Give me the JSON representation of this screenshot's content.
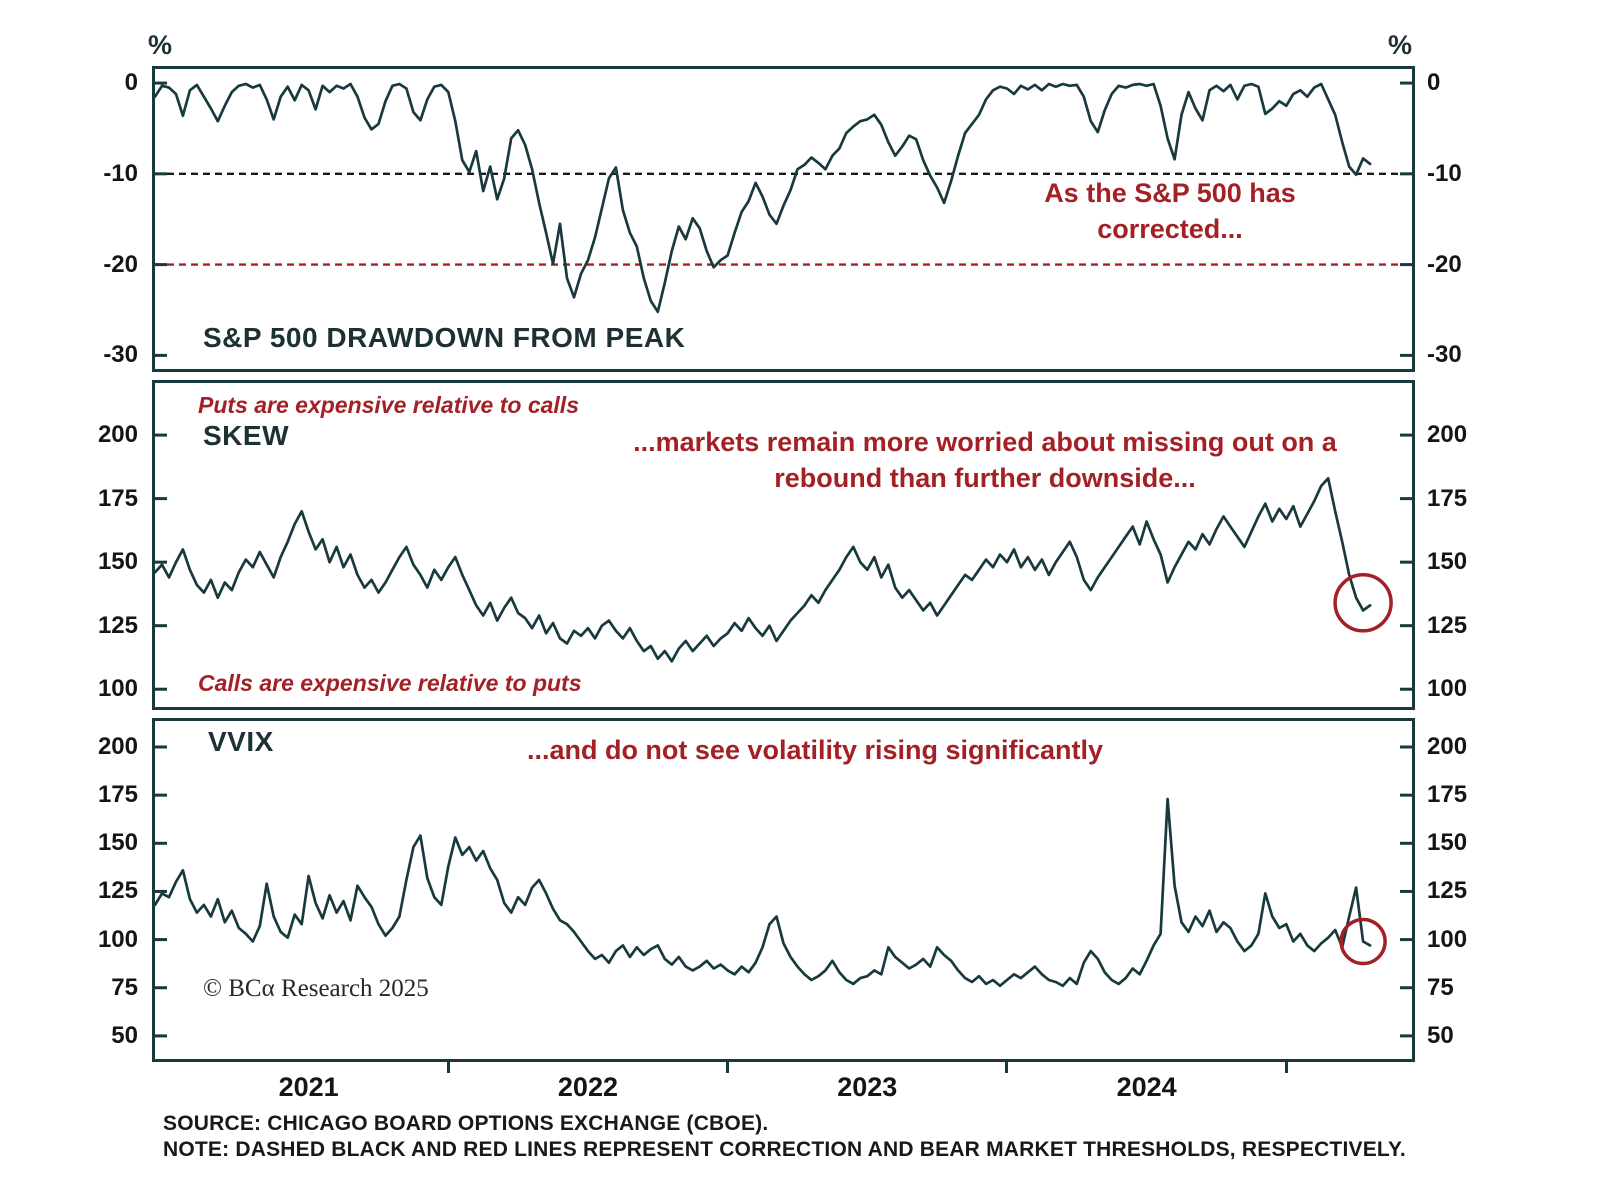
{
  "figure": {
    "bg": "#ffffff",
    "line_color": "#183a3e",
    "accent_red": "#a32126",
    "percent_symbol": "%",
    "copyright": "© BCα Research 2025",
    "footer": {
      "source": "SOURCE: CHICAGO BOARD OPTIONS EXCHANGE (CBOE).",
      "note": "NOTE: DASHED BLACK AND RED LINES REPRESENT CORRECTION AND BEAR MARKET THRESHOLDS, RESPECTIVELY."
    }
  },
  "annotations": {
    "drawdown_note": "As the S&P 500 has\ncorrected...",
    "skew_note": "...markets remain more worried about missing out on a\nrebound than further downside...",
    "vvix_note": "...and do not see volatility rising significantly",
    "puts_note": "Puts are expensive relative to calls",
    "calls_note": "Calls are expensive relative to puts"
  },
  "x_axis": {
    "year_labels": [
      {
        "label": "2021",
        "center": 2021.5
      },
      {
        "label": "2022",
        "center": 2022.5
      },
      {
        "label": "2023",
        "center": 2023.5
      },
      {
        "label": "2024",
        "center": 2024.5
      }
    ],
    "boundary_ticks": [
      2022,
      2023,
      2024,
      2025
    ]
  },
  "chart_data": [
    {
      "type": "line",
      "id": "sp500-drawdown",
      "title": "S&P 500 DRAWDOWN FROM PEAK",
      "ylabel": "%",
      "xlim": [
        2020.95,
        2025.45
      ],
      "ylim": [
        -31.5,
        1.55
      ],
      "yticks": [
        0,
        -10,
        -20,
        -30
      ],
      "thresholds": [
        {
          "name": "correction-threshold",
          "value": -10,
          "color": "#1a1a1a"
        },
        {
          "name": "bear-market-threshold",
          "value": -20,
          "color": "#a32126"
        }
      ],
      "x_start": 2020.95,
      "x_step": 0.025,
      "values": [
        -1.5,
        -0.3,
        -0.5,
        -1.2,
        -3.6,
        -0.8,
        -0.2,
        -1.5,
        -2.8,
        -4.2,
        -2.5,
        -1.0,
        -0.3,
        -0.1,
        -0.5,
        -0.2,
        -1.8,
        -4.0,
        -1.5,
        -0.4,
        -1.9,
        -0.2,
        -0.8,
        -2.9,
        -0.3,
        -1.0,
        -0.3,
        -0.6,
        -0.1,
        -1.5,
        -3.8,
        -5.1,
        -4.5,
        -2.0,
        -0.3,
        -0.1,
        -0.6,
        -3.2,
        -4.1,
        -1.8,
        -0.4,
        -0.2,
        -1.0,
        -4.2,
        -8.5,
        -9.8,
        -7.5,
        -11.9,
        -9.2,
        -12.8,
        -10.5,
        -6.1,
        -5.2,
        -6.8,
        -9.5,
        -13.2,
        -16.5,
        -19.9,
        -15.5,
        -21.5,
        -23.6,
        -21.0,
        -19.5,
        -17.0,
        -13.8,
        -10.5,
        -9.3,
        -14.0,
        -16.5,
        -18.0,
        -21.5,
        -24.0,
        -25.2,
        -22.0,
        -18.5,
        -15.8,
        -17.2,
        -14.9,
        -16.0,
        -18.5,
        -20.3,
        -19.5,
        -19.0,
        -16.5,
        -14.2,
        -13.0,
        -11.0,
        -12.5,
        -14.5,
        -15.5,
        -13.5,
        -11.8,
        -9.5,
        -9.0,
        -8.2,
        -8.8,
        -9.5,
        -8.0,
        -7.2,
        -5.5,
        -4.8,
        -4.2,
        -4.0,
        -3.5,
        -4.6,
        -6.5,
        -8.0,
        -7.0,
        -5.8,
        -6.2,
        -8.5,
        -10.2,
        -11.5,
        -13.2,
        -10.8,
        -8.0,
        -5.5,
        -4.5,
        -3.5,
        -1.8,
        -0.8,
        -0.4,
        -0.6,
        -1.2,
        -0.3,
        -0.7,
        -0.2,
        -0.8,
        -0.1,
        -0.4,
        -0.1,
        -0.3,
        -0.2,
        -1.5,
        -4.2,
        -5.4,
        -3.0,
        -1.2,
        -0.3,
        -0.5,
        -0.2,
        -0.1,
        -0.3,
        -0.1,
        -2.5,
        -6.1,
        -8.4,
        -3.5,
        -1.0,
        -2.8,
        -4.1,
        -0.8,
        -0.3,
        -0.9,
        -0.2,
        -1.8,
        -0.3,
        -0.1,
        -0.4,
        -3.4,
        -2.8,
        -2.0,
        -2.5,
        -1.2,
        -0.8,
        -1.5,
        -0.5,
        -0.1,
        -1.8,
        -3.5,
        -6.5,
        -9.2,
        -10.1,
        -8.3,
        -8.9
      ]
    },
    {
      "type": "line",
      "id": "skew",
      "title": "SKEW",
      "xlim": [
        2020.95,
        2025.45
      ],
      "ylim": [
        93,
        220.5
      ],
      "yticks": [
        200,
        175,
        150,
        125,
        100
      ],
      "highlight": {
        "x": 2025.275,
        "y": 134,
        "r": 28
      },
      "x_start": 2020.95,
      "x_step": 0.025,
      "values": [
        146,
        149,
        144,
        150,
        155,
        147,
        141,
        138,
        143,
        136,
        142,
        139,
        146,
        151,
        148,
        154,
        149,
        144,
        152,
        158,
        165,
        170,
        162,
        155,
        159,
        150,
        156,
        148,
        153,
        145,
        140,
        143,
        138,
        142,
        147,
        152,
        156,
        149,
        145,
        140,
        147,
        143,
        148,
        152,
        145,
        139,
        133,
        129,
        134,
        127,
        132,
        136,
        130,
        128,
        124,
        129,
        122,
        126,
        120,
        118,
        123,
        121,
        124,
        120,
        125,
        127,
        123,
        120,
        124,
        119,
        115,
        117,
        112,
        115,
        111,
        116,
        119,
        115,
        118,
        121,
        117,
        120,
        122,
        126,
        123,
        128,
        124,
        121,
        125,
        119,
        123,
        127,
        130,
        133,
        137,
        134,
        139,
        143,
        147,
        152,
        156,
        150,
        147,
        152,
        144,
        149,
        140,
        136,
        139,
        135,
        131,
        134,
        129,
        133,
        137,
        141,
        145,
        143,
        147,
        151,
        148,
        153,
        150,
        155,
        148,
        152,
        147,
        151,
        145,
        150,
        154,
        158,
        152,
        143,
        139,
        144,
        148,
        152,
        156,
        160,
        164,
        157,
        166,
        159,
        153,
        142,
        148,
        153,
        158,
        155,
        161,
        157,
        163,
        168,
        164,
        160,
        156,
        162,
        168,
        173,
        166,
        171,
        167,
        172,
        164,
        169,
        174,
        180,
        183,
        170,
        158,
        145,
        136,
        131,
        133
      ]
    },
    {
      "type": "line",
      "id": "vvix",
      "title": "VVIX",
      "xlim": [
        2020.95,
        2025.45
      ],
      "ylim": [
        38,
        213.5
      ],
      "yticks": [
        200,
        175,
        150,
        125,
        100,
        75,
        50
      ],
      "highlight": {
        "x": 2025.275,
        "y": 99,
        "r": 22
      },
      "x_start": 2020.95,
      "x_step": 0.025,
      "values": [
        118,
        124,
        122,
        130,
        136,
        121,
        114,
        118,
        112,
        121,
        109,
        115,
        106,
        103,
        99,
        107,
        129,
        112,
        104,
        101,
        113,
        108,
        133,
        119,
        111,
        123,
        114,
        120,
        110,
        128,
        122,
        117,
        108,
        102,
        106,
        112,
        131,
        148,
        154,
        132,
        122,
        118,
        138,
        153,
        144,
        148,
        141,
        146,
        137,
        131,
        119,
        114,
        122,
        118,
        127,
        131,
        124,
        116,
        110,
        108,
        104,
        99,
        94,
        90,
        92,
        88,
        94,
        97,
        91,
        96,
        92,
        95,
        97,
        90,
        87,
        91,
        86,
        84,
        86,
        89,
        85,
        87,
        84,
        82,
        86,
        83,
        88,
        96,
        108,
        112,
        98,
        91,
        86,
        82,
        79,
        81,
        84,
        89,
        83,
        79,
        77,
        80,
        81,
        84,
        82,
        96,
        91,
        88,
        85,
        87,
        90,
        86,
        96,
        92,
        89,
        84,
        80,
        78,
        81,
        77,
        79,
        76,
        79,
        82,
        80,
        83,
        86,
        82,
        79,
        78,
        76,
        80,
        77,
        88,
        94,
        90,
        83,
        79,
        77,
        80,
        85,
        82,
        89,
        97,
        103,
        173,
        128,
        109,
        104,
        112,
        107,
        115,
        104,
        109,
        106,
        99,
        94,
        97,
        103,
        124,
        112,
        106,
        108,
        99,
        103,
        97,
        94,
        98,
        101,
        105,
        96,
        112,
        127,
        99,
        97
      ]
    }
  ]
}
